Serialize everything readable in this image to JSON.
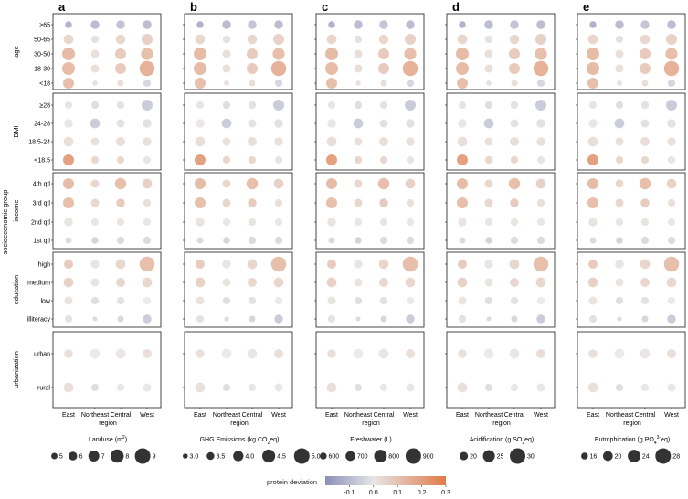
{
  "chart_data": {
    "type": "bubble-grid",
    "panel_letters": [
      "a",
      "b",
      "c",
      "d",
      "e"
    ],
    "regions": [
      "East",
      "Northeast",
      "Central",
      "West"
    ],
    "x_title": "region",
    "y_title": "socioeconomic group",
    "groups": [
      {
        "name": "age",
        "rows": [
          "≥65",
          "50-65",
          "30-50",
          "18-30",
          "<18"
        ]
      },
      {
        "name": "BMI",
        "rows": [
          "≥28",
          "24-28",
          "18.5-24",
          "<18.5"
        ]
      },
      {
        "name": "income",
        "rows": [
          "4th qtl",
          "3rd qtl",
          "2nd qtl",
          "1st qtl"
        ]
      },
      {
        "name": "education",
        "rows": [
          "high",
          "medium",
          "low",
          "illiteracy"
        ]
      },
      {
        "name": "urbanization",
        "rows": [
          "urban",
          "rural"
        ]
      }
    ],
    "color_scale": {
      "title": "protein deviation",
      "min": -0.2,
      "max": 0.3,
      "ticks": [
        -0.1,
        0.0,
        0.1,
        0.2,
        0.3
      ],
      "tick_labels": [
        "-0.1",
        "0.0",
        "0.1",
        "0.2",
        "0.3"
      ],
      "neg_color": "#8a8fb8",
      "mid_color": "#e6e6e6",
      "pos_color": "#e07a48"
    },
    "protein_deviation": [
      [
        -0.15,
        -0.12,
        -0.1,
        -0.12
      ],
      [
        0.06,
        -0.02,
        0.06,
        0.08
      ],
      [
        0.15,
        0.04,
        0.1,
        0.14
      ],
      [
        0.15,
        0.04,
        0.1,
        0.18
      ],
      [
        0.14,
        0.03,
        0.04,
        -0.05
      ],
      [
        -0.01,
        -0.03,
        -0.02,
        -0.08
      ],
      [
        0.01,
        -0.08,
        -0.02,
        -0.02
      ],
      [
        0.04,
        0.03,
        0.04,
        0.03
      ],
      [
        0.24,
        0.06,
        0.06,
        0.02
      ],
      [
        0.15,
        0.06,
        0.14,
        0.08
      ],
      [
        0.14,
        0.06,
        0.1,
        0.04
      ],
      [
        0.02,
        0.01,
        0.02,
        0.01
      ],
      [
        -0.04,
        -0.06,
        -0.04,
        -0.04
      ],
      [
        0.1,
        -0.01,
        0.06,
        0.14
      ],
      [
        0.08,
        0.02,
        0.06,
        0.06
      ],
      [
        0.02,
        -0.03,
        -0.02,
        0.0
      ],
      [
        -0.02,
        -0.04,
        -0.05,
        -0.08
      ],
      [
        0.03,
        0.0,
        0.01,
        0.04
      ],
      [
        0.03,
        -0.03,
        0.01,
        0.01
      ]
    ],
    "bubble_size": [
      [
        5.2,
        6.0,
        6.0,
        6.0
      ],
      [
        6.5,
        5.5,
        6.4,
        7.0
      ],
      [
        7.8,
        5.8,
        7.0,
        7.5
      ],
      [
        7.8,
        5.8,
        7.0,
        8.8
      ],
      [
        7.0,
        4.5,
        5.0,
        5.5
      ],
      [
        5.5,
        5.5,
        5.5,
        7.0
      ],
      [
        6.0,
        6.5,
        5.8,
        6.0
      ],
      [
        6.5,
        5.8,
        6.2,
        6.0
      ],
      [
        7.0,
        5.5,
        5.5,
        5.5
      ],
      [
        7.0,
        5.8,
        7.2,
        6.5
      ],
      [
        7.0,
        5.8,
        6.0,
        5.5
      ],
      [
        6.0,
        5.5,
        5.5,
        5.5
      ],
      [
        5.0,
        5.2,
        5.5,
        5.5
      ],
      [
        6.2,
        6.0,
        6.5,
        8.8
      ],
      [
        6.5,
        5.8,
        6.2,
        6.5
      ],
      [
        5.8,
        5.5,
        5.5,
        5.5
      ],
      [
        5.5,
        4.2,
        5.0,
        6.0
      ],
      [
        6.0,
        6.5,
        6.5,
        6.2
      ],
      [
        6.5,
        5.5,
        5.5,
        5.8
      ]
    ],
    "panels": [
      {
        "letter": "a",
        "metric_label_html": "Landuse (m<tspan baseline-shift='super' font-size='5'>2</tspan>)",
        "metric_label": "Landuse (m2)",
        "legend_labels": [
          "5",
          "6",
          "7",
          "8",
          "9"
        ],
        "legend_values": [
          5,
          6,
          7,
          8,
          9
        ],
        "size_range": [
          4,
          9
        ]
      },
      {
        "letter": "b",
        "metric_label_html": "GHG Emissions (kg CO<tspan baseline-shift='sub' font-size='5'>2</tspan>eq)",
        "metric_label": "GHG Emissions (kg CO2eq)",
        "legend_labels": [
          "3.0",
          "3.5",
          "4.0",
          "4.5",
          "5.0"
        ],
        "legend_values": [
          3.0,
          3.5,
          4.0,
          4.5,
          5.0
        ],
        "size_range": [
          2.8,
          5.0
        ]
      },
      {
        "letter": "c",
        "metric_label_html": "Freshwater (L)",
        "metric_label": "Freshwater (L)",
        "legend_labels": [
          "600",
          "700",
          "800",
          "900"
        ],
        "legend_values": [
          600,
          700,
          800,
          900
        ],
        "size_range": [
          500,
          900
        ]
      },
      {
        "letter": "d",
        "metric_label_html": "Acidification (g SO<tspan baseline-shift='sub' font-size='5'>2</tspan>eq)",
        "metric_label": "Acidification (g SO2eq)",
        "legend_labels": [
          "20",
          "25",
          "30"
        ],
        "legend_values": [
          20,
          25,
          30
        ],
        "size_range": [
          14,
          30
        ]
      },
      {
        "letter": "e",
        "metric_label_html": "Eutrophication (g PO<tspan baseline-shift='sub' font-size='5'>4</tspan><tspan baseline-shift='super' font-size='5'>3-</tspan>eq)",
        "metric_label": "Eutrophication (g PO43-eq)",
        "legend_labels": [
          "16",
          "20",
          "24",
          "28"
        ],
        "legend_values": [
          16,
          20,
          24,
          28
        ],
        "size_range": [
          12,
          28
        ]
      }
    ]
  }
}
